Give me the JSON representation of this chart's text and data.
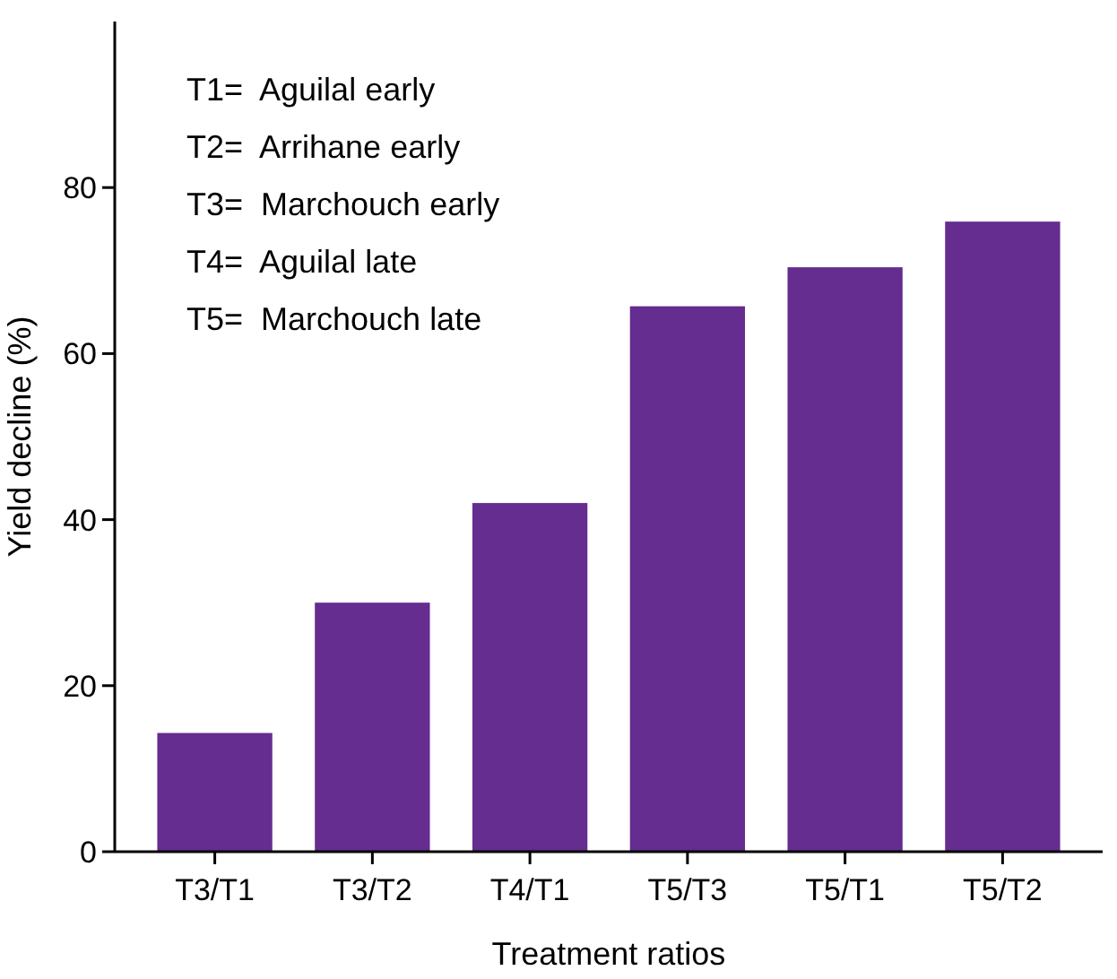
{
  "chart_data": {
    "type": "bar",
    "xlabel": "Treatment ratios",
    "ylabel": "Yield decline (%)",
    "categories": [
      "T3/T1",
      "T3/T2",
      "T4/T1",
      "T5/T3",
      "T5/T1",
      "T5/T2"
    ],
    "values": [
      14.3,
      30,
      42,
      65.7,
      70.4,
      75.9
    ],
    "color": "#652d8f",
    "ylim": [
      0,
      100
    ],
    "yticks": [
      0,
      20,
      40,
      60,
      80
    ],
    "grid": false,
    "annotations": [
      "T1=  Aguilal early",
      "T2=  Arrihane early",
      "T3=  Marchouch early",
      "T4=  Aguilal late",
      "T5=  Marchouch late"
    ]
  }
}
